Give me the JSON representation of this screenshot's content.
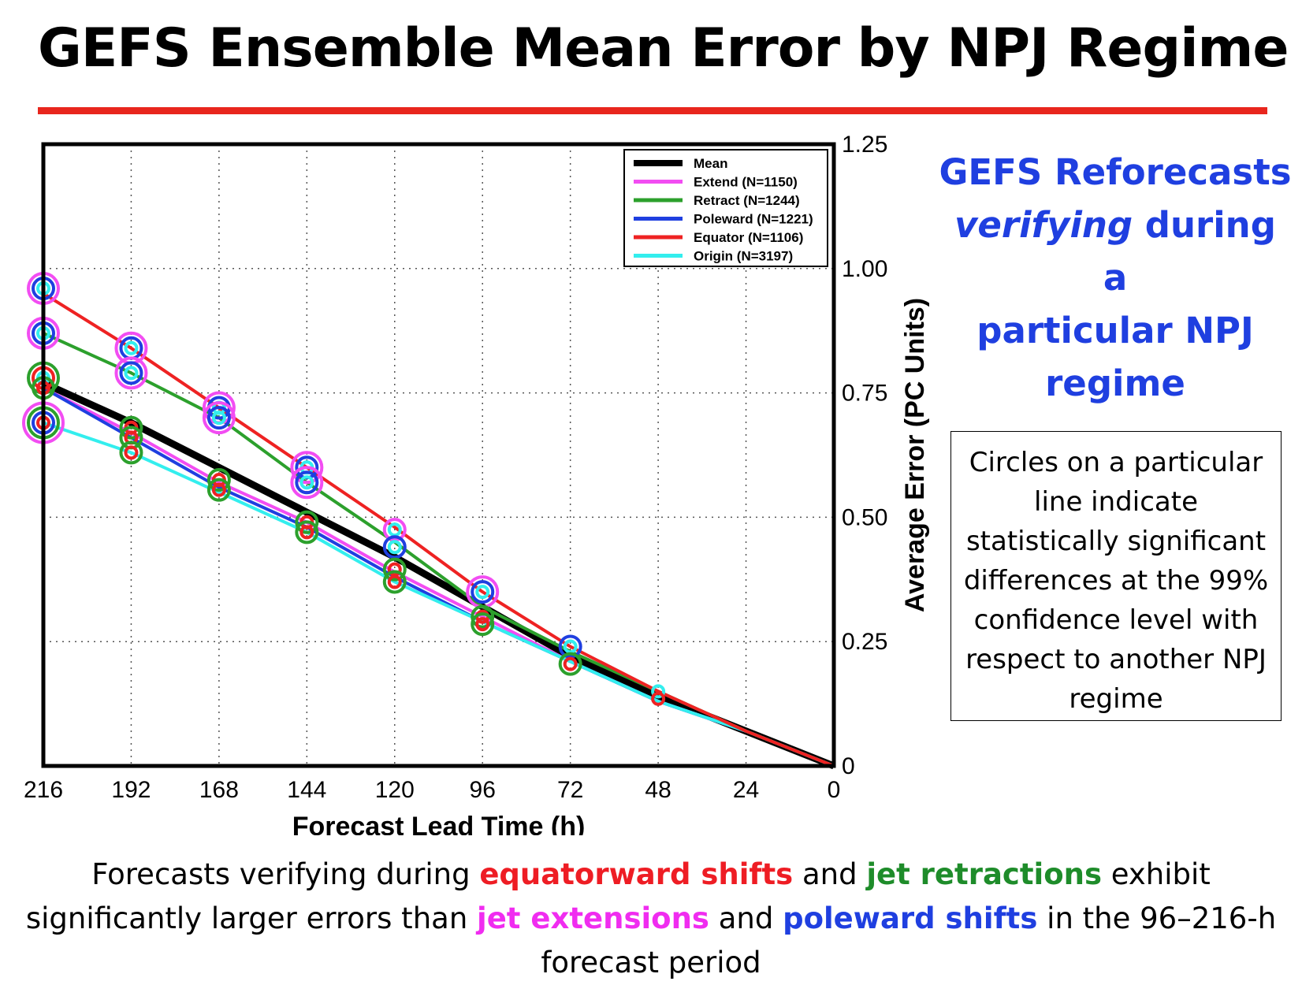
{
  "title": "GEFS Ensemble Mean Error by NPJ Regime",
  "side_heading": {
    "line1": "GEFS Reforecasts",
    "line2_italic": "verifying",
    "line2_rest": " during a",
    "line3": "particular NPJ",
    "line4": "regime"
  },
  "note_box": "Circles on a particular line indicate statistically significant differences at the 99% confidence level with respect to another NPJ regime",
  "summary": {
    "part1": "Forecasts verifying during ",
    "part2": "equatorward shifts",
    "part3": " and ",
    "part4": "jet retractions",
    "part5": " exhibit significantly larger errors than ",
    "part6": "jet extensions",
    "part7": " and ",
    "part8": "poleward shifts",
    "part9": " in the 96–216-h forecast period"
  },
  "colors": {
    "title_rule": "#e8261d",
    "heading_blue": "#1f3fe0",
    "equator_red": "#ee1d24",
    "retract_green": "#1e8c2a",
    "extend_magenta": "#f02cf0",
    "poleward_blue": "#1f3fe0"
  },
  "chart_data": {
    "type": "line",
    "xlabel": "Forecast Lead Time (h)",
    "ylabel": "Average Error (PC Units)",
    "x": [
      216,
      192,
      168,
      144,
      120,
      96,
      72,
      48,
      24,
      0
    ],
    "xlim": [
      216,
      0
    ],
    "ylim": [
      0,
      1.25
    ],
    "x_ticks": [
      "216",
      "192",
      "168",
      "144",
      "120",
      "96",
      "72",
      "48",
      "24",
      "0"
    ],
    "y_ticks": [
      "1.25",
      "1.00",
      "0.75",
      "0.50",
      "0.25",
      "0"
    ],
    "y_tick_values": [
      1.25,
      1.0,
      0.75,
      0.5,
      0.25,
      0
    ],
    "grid": true,
    "y_axis_side": "right",
    "legend_position": "top-right",
    "series": [
      {
        "name": "Mean",
        "color": "#000000",
        "width": 9,
        "values": [
          0.77,
          0.69,
          0.6,
          0.51,
          0.42,
          0.32,
          0.22,
          0.14,
          0.07,
          0.0
        ]
      },
      {
        "name": "Extend (N=1150)",
        "color": "#f24df2",
        "width": 4,
        "values": [
          0.76,
          0.67,
          0.57,
          0.49,
          0.39,
          0.3,
          0.21,
          0.13,
          0.07,
          0.0
        ]
      },
      {
        "name": "Retract (N=1244)",
        "color": "#2ca02c",
        "width": 4,
        "values": [
          0.87,
          0.79,
          0.7,
          0.57,
          0.45,
          0.32,
          0.23,
          0.15,
          0.07,
          0.0
        ]
      },
      {
        "name": "Poleward (N=1221)",
        "color": "#1f3fe0",
        "width": 4,
        "values": [
          0.76,
          0.66,
          0.56,
          0.48,
          0.38,
          0.29,
          0.21,
          0.13,
          0.07,
          0.0
        ]
      },
      {
        "name": "Equator (N=1106)",
        "color": "#ee2222",
        "width": 4,
        "values": [
          0.95,
          0.84,
          0.72,
          0.6,
          0.48,
          0.35,
          0.24,
          0.15,
          0.07,
          0.0
        ]
      },
      {
        "name": "Origin (N=3197)",
        "color": "#33eeee",
        "width": 4,
        "values": [
          0.69,
          0.63,
          0.55,
          0.47,
          0.37,
          0.29,
          0.21,
          0.13,
          0.07,
          0.0
        ]
      }
    ],
    "significance_circles": [
      {
        "x": 216,
        "y": 0.96,
        "colors": [
          "#f24df2",
          "#1f3fe0",
          "#33eeee"
        ]
      },
      {
        "x": 216,
        "y": 0.87,
        "colors": [
          "#f24df2",
          "#1f3fe0",
          "#33eeee"
        ]
      },
      {
        "x": 216,
        "y": 0.78,
        "colors": [
          "#2ca02c",
          "#ee2222",
          "#33eeee"
        ]
      },
      {
        "x": 216,
        "y": 0.76,
        "colors": [
          "#2ca02c",
          "#ee2222"
        ]
      },
      {
        "x": 216,
        "y": 0.69,
        "colors": [
          "#f24df2",
          "#2ca02c",
          "#1f3fe0",
          "#ee2222"
        ]
      },
      {
        "x": 192,
        "y": 0.84,
        "colors": [
          "#f24df2",
          "#1f3fe0",
          "#33eeee"
        ]
      },
      {
        "x": 192,
        "y": 0.79,
        "colors": [
          "#f24df2",
          "#1f3fe0",
          "#33eeee"
        ]
      },
      {
        "x": 192,
        "y": 0.68,
        "colors": [
          "#2ca02c",
          "#ee2222"
        ]
      },
      {
        "x": 192,
        "y": 0.66,
        "colors": [
          "#2ca02c",
          "#ee2222"
        ]
      },
      {
        "x": 192,
        "y": 0.63,
        "colors": [
          "#2ca02c",
          "#ee2222"
        ]
      },
      {
        "x": 168,
        "y": 0.72,
        "colors": [
          "#f24df2",
          "#1f3fe0",
          "#33eeee"
        ]
      },
      {
        "x": 168,
        "y": 0.7,
        "colors": [
          "#f24df2",
          "#1f3fe0",
          "#33eeee"
        ]
      },
      {
        "x": 168,
        "y": 0.575,
        "colors": [
          "#2ca02c",
          "#ee2222"
        ]
      },
      {
        "x": 168,
        "y": 0.555,
        "colors": [
          "#2ca02c",
          "#ee2222"
        ]
      },
      {
        "x": 144,
        "y": 0.6,
        "colors": [
          "#f24df2",
          "#1f3fe0",
          "#33eeee"
        ]
      },
      {
        "x": 144,
        "y": 0.57,
        "colors": [
          "#f24df2",
          "#1f3fe0",
          "#33eeee"
        ]
      },
      {
        "x": 144,
        "y": 0.49,
        "colors": [
          "#2ca02c",
          "#ee2222"
        ]
      },
      {
        "x": 144,
        "y": 0.47,
        "colors": [
          "#2ca02c",
          "#ee2222"
        ]
      },
      {
        "x": 120,
        "y": 0.475,
        "colors": [
          "#f24df2",
          "#33eeee"
        ]
      },
      {
        "x": 120,
        "y": 0.44,
        "colors": [
          "#1f3fe0",
          "#33eeee"
        ]
      },
      {
        "x": 120,
        "y": 0.395,
        "colors": [
          "#2ca02c",
          "#ee2222"
        ]
      },
      {
        "x": 120,
        "y": 0.37,
        "colors": [
          "#2ca02c",
          "#ee2222"
        ]
      },
      {
        "x": 96,
        "y": 0.35,
        "colors": [
          "#f24df2",
          "#1f3fe0",
          "#33eeee"
        ]
      },
      {
        "x": 96,
        "y": 0.3,
        "colors": [
          "#2ca02c",
          "#ee2222"
        ]
      },
      {
        "x": 96,
        "y": 0.285,
        "colors": [
          "#2ca02c",
          "#ee2222"
        ]
      },
      {
        "x": 72,
        "y": 0.24,
        "colors": [
          "#1f3fe0",
          "#33eeee"
        ]
      },
      {
        "x": 72,
        "y": 0.205,
        "colors": [
          "#2ca02c",
          "#ee2222"
        ]
      },
      {
        "x": 48,
        "y": 0.15,
        "colors": [
          "#33eeee"
        ]
      },
      {
        "x": 48,
        "y": 0.135,
        "colors": [
          "#ee2222"
        ]
      }
    ]
  }
}
